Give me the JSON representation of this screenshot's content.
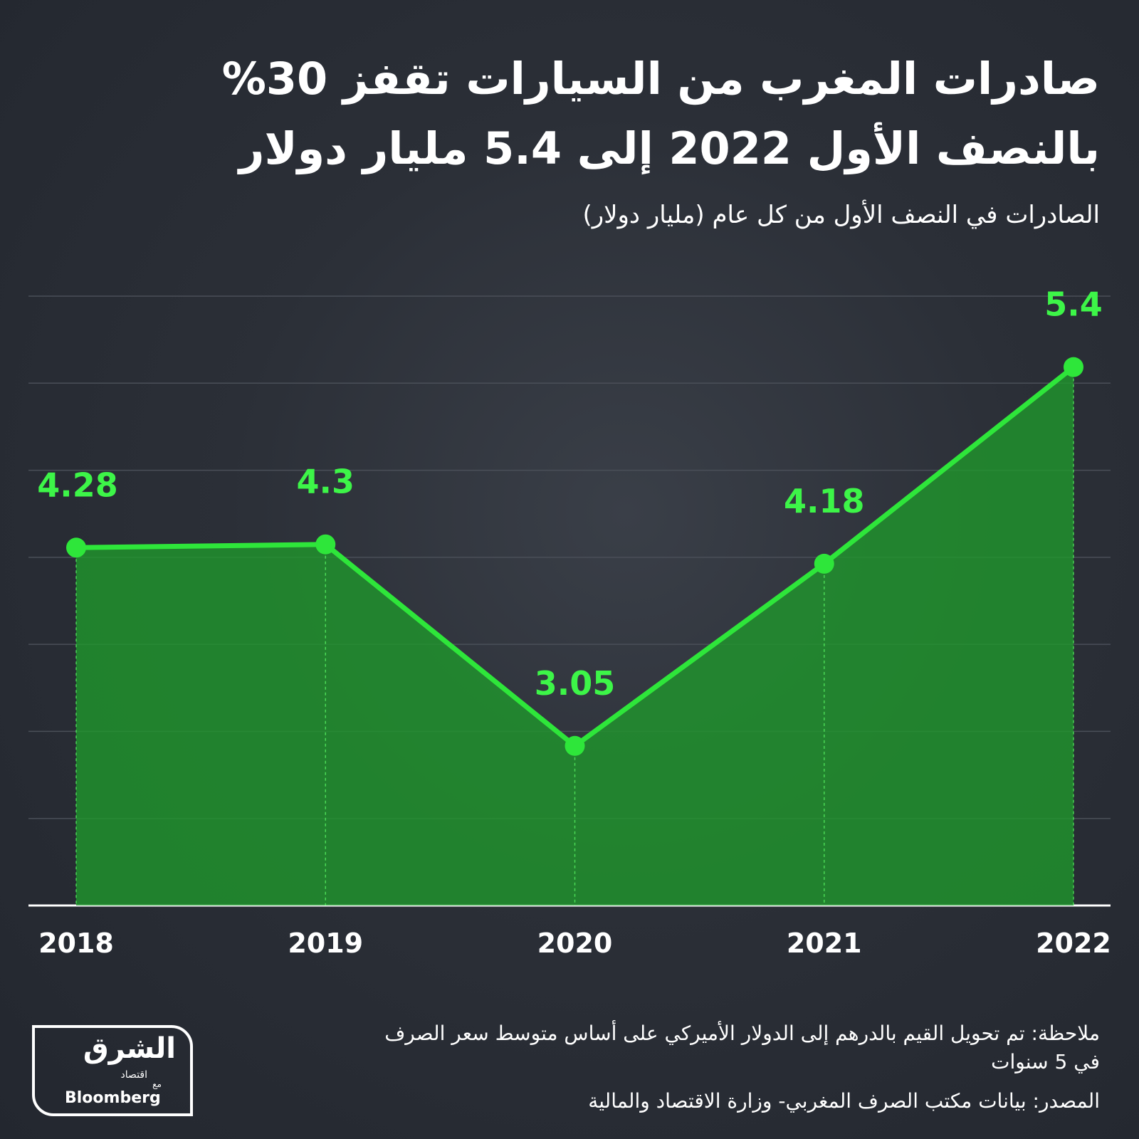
{
  "chart_data": {
    "type": "line",
    "title": "صادرات المغرب من السيارات تقفز 30% بالنصف الأول 2022 إلى 5.4 مليار دولار",
    "subtitle": "الصادرات في النصف الأول من كل عام (مليار دولار)",
    "categories": [
      "2018",
      "2019",
      "2020",
      "2021",
      "2022"
    ],
    "values": [
      4.28,
      4.3,
      3.05,
      4.18,
      5.4
    ],
    "color": "#2ee63a",
    "ylim": [
      2.06,
      5.84
    ],
    "yticks": [
      2.6,
      3.14,
      3.68,
      4.22,
      4.76,
      5.3,
      5.84
    ],
    "grid": true,
    "note": "ملاحظة: تم تحويل القيم بالدرهم إلى الدولار الأميركي على أساس متوسط سعر الصرف في 5 سنوات",
    "source": "المصدر: بيانات مكتب الصرف المغربي- وزارة الاقتصاد والمالية"
  },
  "logo": {
    "name": "الشرق",
    "tagline": "اقتصاد",
    "with": "مع",
    "partner": "Bloomberg"
  }
}
